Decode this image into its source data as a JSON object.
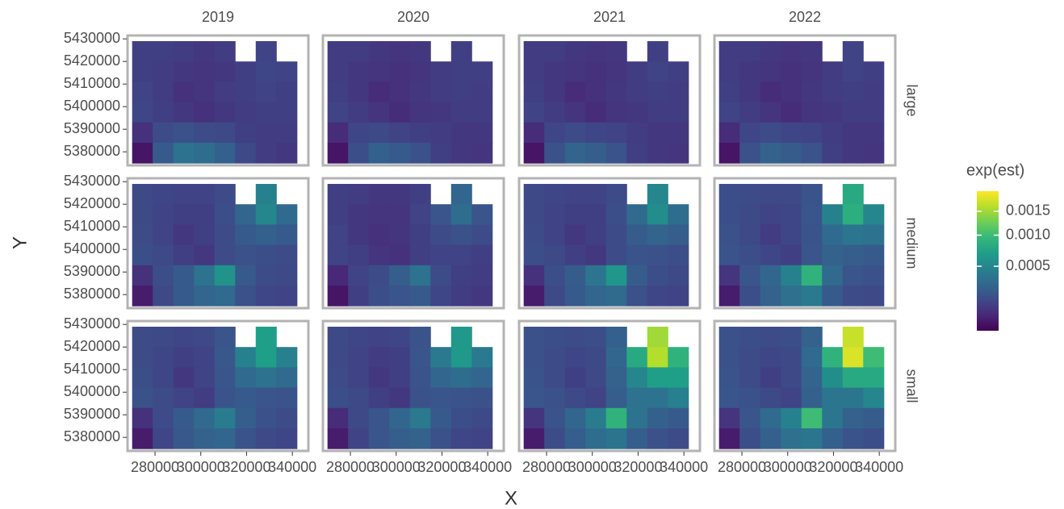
{
  "chart_data": {
    "type": "heatmap",
    "x_label": "X",
    "y_label": "Y",
    "legend_title": "exp(est)",
    "facet_cols": [
      "2019",
      "2020",
      "2021",
      "2022"
    ],
    "facet_rows": [
      "large",
      "medium",
      "small"
    ],
    "x": [
      274500,
      283500,
      292500,
      301500,
      310500,
      319500,
      328500,
      337500
    ],
    "y": [
      5424500,
      5415500,
      5406500,
      5397500,
      5388500,
      5379500
    ],
    "xlim": [
      268000,
      347000
    ],
    "ylim": [
      5374000,
      5431500
    ],
    "xticks": [
      280000,
      300000,
      320000,
      340000
    ],
    "yticks": [
      5380000,
      5390000,
      5400000,
      5410000,
      5420000,
      5430000
    ],
    "color_lim": [
      1e-05,
      0.002
    ],
    "color_trans": "sqrt",
    "color_ticks": [
      0.0005,
      {
        "value": 0.001,
        "label": "0.0010"
      },
      0.0015
    ],
    "colormap": [
      "#440154",
      "#482878",
      "#3e4a89",
      "#31688e",
      "#26828e",
      "#1f9e89",
      "#35b779",
      "#6ece58",
      "#b5de2b",
      "#fde725"
    ],
    "values": [
      [
        [
          [
            0.00012,
            0.00012,
            0.00011,
            0.0001,
            0.00011,
            null,
            0.00013,
            null
          ],
          [
            0.00012,
            0.00011,
            0.0001,
            9e-05,
            0.0001,
            0.00012,
            0.00014,
            0.00013
          ],
          [
            0.00013,
            0.00011,
            8e-05,
            9e-05,
            0.00011,
            0.00012,
            0.00013,
            0.00012
          ],
          [
            0.00014,
            0.00012,
            0.0001,
            8e-05,
            0.0001,
            0.00011,
            0.00012,
            0.00012
          ],
          [
            8e-05,
            0.00016,
            0.00018,
            0.00016,
            0.00015,
            0.00012,
            0.00011,
            0.00011
          ],
          [
            3e-05,
            0.00022,
            0.00035,
            0.00032,
            0.00025,
            0.00015,
            0.00011,
            0.0001
          ]
        ],
        [
          [
            0.00011,
            0.00011,
            0.0001,
            9e-05,
            0.0001,
            null,
            0.00012,
            null
          ],
          [
            0.00011,
            0.0001,
            9e-05,
            8e-05,
            9e-05,
            0.00011,
            0.00012,
            0.00012
          ],
          [
            0.00012,
            0.0001,
            7e-05,
            8e-05,
            0.0001,
            0.00011,
            0.00012,
            0.00011
          ],
          [
            0.00013,
            0.00011,
            9e-05,
            7e-05,
            9e-05,
            0.0001,
            0.00011,
            0.00011
          ],
          [
            7e-05,
            0.00014,
            0.00015,
            0.00013,
            0.00012,
            0.00011,
            0.0001,
            0.0001
          ],
          [
            3e-05,
            0.00017,
            0.00025,
            0.00022,
            0.00018,
            0.00012,
            0.0001,
            9e-05
          ]
        ],
        [
          [
            0.00011,
            0.00011,
            0.0001,
            9e-05,
            0.0001,
            null,
            0.00012,
            null
          ],
          [
            0.00011,
            0.0001,
            9e-05,
            8e-05,
            9e-05,
            0.00011,
            0.00013,
            0.00012
          ],
          [
            0.00012,
            0.0001,
            7e-05,
            8e-05,
            0.0001,
            0.00011,
            0.00012,
            0.00011
          ],
          [
            0.00013,
            0.00011,
            9e-05,
            7e-05,
            9e-05,
            0.0001,
            0.00011,
            0.00011
          ],
          [
            7e-05,
            0.00014,
            0.00016,
            0.00014,
            0.00013,
            0.00011,
            0.0001,
            0.0001
          ],
          [
            3e-05,
            0.00018,
            0.00027,
            0.00024,
            0.00019,
            0.00012,
            0.0001,
            9e-05
          ]
        ],
        [
          [
            0.00011,
            0.00011,
            0.0001,
            9e-05,
            0.0001,
            null,
            0.00013,
            null
          ],
          [
            0.00011,
            0.0001,
            9e-05,
            8e-05,
            9e-05,
            0.00011,
            0.00013,
            0.00012
          ],
          [
            0.00012,
            0.0001,
            7e-05,
            8e-05,
            0.0001,
            0.00011,
            0.00012,
            0.00011
          ],
          [
            0.00013,
            0.00011,
            9e-05,
            7e-05,
            9e-05,
            0.0001,
            0.00011,
            0.00011
          ],
          [
            7e-05,
            0.00014,
            0.00016,
            0.00014,
            0.00013,
            0.00011,
            0.0001,
            0.0001
          ],
          [
            3e-05,
            0.00018,
            0.00026,
            0.00023,
            0.00019,
            0.00012,
            0.0001,
            9e-05
          ]
        ]
      ],
      [
        [
          [
            0.00015,
            0.00014,
            0.00013,
            0.00013,
            0.00016,
            null,
            0.00045,
            null
          ],
          [
            0.00015,
            0.00013,
            0.00012,
            0.00012,
            0.00017,
            0.00028,
            0.0005,
            0.0003
          ],
          [
            0.00016,
            0.00013,
            0.0001,
            0.00012,
            0.00016,
            0.00022,
            0.00025,
            0.00022
          ],
          [
            0.00017,
            0.00015,
            0.00012,
            0.0001,
            0.00016,
            0.00018,
            0.00017,
            0.00016
          ],
          [
            8e-05,
            0.00017,
            0.00022,
            0.00035,
            0.0006,
            0.00022,
            0.00016,
            0.00015
          ],
          [
            4e-05,
            0.00015,
            0.00022,
            0.00028,
            0.0003,
            0.00018,
            0.00014,
            0.00013
          ]
        ],
        [
          [
            0.00012,
            0.00011,
            0.0001,
            0.0001,
            0.00012,
            null,
            0.00028,
            null
          ],
          [
            0.00012,
            0.0001,
            9e-05,
            9e-05,
            0.00013,
            0.0002,
            0.00032,
            0.0002
          ],
          [
            0.00013,
            0.0001,
            8e-05,
            9e-05,
            0.00012,
            0.00016,
            0.00018,
            0.00016
          ],
          [
            0.00013,
            0.00012,
            9e-05,
            8e-05,
            0.00012,
            0.00013,
            0.00013,
            0.00012
          ],
          [
            6e-05,
            0.00013,
            0.00016,
            0.00024,
            0.00035,
            0.00016,
            0.00012,
            0.00011
          ],
          [
            3e-05,
            0.00012,
            0.00017,
            0.0002,
            0.00022,
            0.00014,
            0.00011,
            0.0001
          ]
        ],
        [
          [
            0.00015,
            0.00014,
            0.00013,
            0.00013,
            0.00016,
            null,
            0.0005,
            null
          ],
          [
            0.00015,
            0.00013,
            0.00012,
            0.00012,
            0.00017,
            0.0003,
            0.00055,
            0.00032
          ],
          [
            0.00016,
            0.00013,
            0.0001,
            0.00012,
            0.00016,
            0.00023,
            0.00027,
            0.00024
          ],
          [
            0.00017,
            0.00015,
            0.00012,
            0.0001,
            0.00016,
            0.00019,
            0.00018,
            0.00017
          ],
          [
            8e-05,
            0.00017,
            0.00023,
            0.00037,
            0.00062,
            0.00023,
            0.00017,
            0.00015
          ],
          [
            4e-05,
            0.00015,
            0.00022,
            0.00028,
            0.00031,
            0.00018,
            0.00014,
            0.00013
          ]
        ],
        [
          [
            0.00017,
            0.00016,
            0.00015,
            0.00015,
            0.00019,
            null,
            0.0008,
            null
          ],
          [
            0.00017,
            0.00015,
            0.00013,
            0.00014,
            0.0002,
            0.00045,
            0.00085,
            0.0005
          ],
          [
            0.00018,
            0.00015,
            0.00011,
            0.00014,
            0.00019,
            0.0003,
            0.00038,
            0.00035
          ],
          [
            0.00019,
            0.00017,
            0.00014,
            0.00012,
            0.0002,
            0.00026,
            0.00024,
            0.00022
          ],
          [
            9e-05,
            0.0002,
            0.00028,
            0.00045,
            0.0009,
            0.0003,
            0.0002,
            0.00018
          ],
          [
            4e-05,
            0.00017,
            0.00026,
            0.00034,
            0.0004,
            0.00022,
            0.00016,
            0.00015
          ]
        ]
      ],
      [
        [
          [
            0.00016,
            0.00015,
            0.00014,
            0.00015,
            0.0002,
            null,
            0.0007,
            null
          ],
          [
            0.00016,
            0.00014,
            0.00012,
            0.00013,
            0.00021,
            0.00045,
            0.0007,
            0.00045
          ],
          [
            0.00017,
            0.00014,
            0.0001,
            0.00013,
            0.0002,
            0.0003,
            0.00035,
            0.0003
          ],
          [
            0.00018,
            0.00016,
            0.00013,
            0.00011,
            0.00019,
            0.00022,
            0.0002,
            0.00019
          ],
          [
            8e-05,
            0.00016,
            0.00022,
            0.0003,
            0.00042,
            0.00024,
            0.00018,
            0.00016
          ],
          [
            4e-05,
            0.00014,
            0.00021,
            0.00026,
            0.00028,
            0.00019,
            0.00015,
            0.00014
          ]
        ],
        [
          [
            0.00015,
            0.00014,
            0.00013,
            0.00014,
            0.00019,
            null,
            0.00065,
            null
          ],
          [
            0.00015,
            0.00013,
            0.00011,
            0.00012,
            0.0002,
            0.0004,
            0.00065,
            0.0004
          ],
          [
            0.00016,
            0.00013,
            0.0001,
            0.00012,
            0.00019,
            0.00028,
            0.00032,
            0.00028
          ],
          [
            0.00017,
            0.00015,
            0.00012,
            0.0001,
            0.00018,
            0.0002,
            0.00019,
            0.00018
          ],
          [
            7e-05,
            0.00015,
            0.0002,
            0.00028,
            0.0004,
            0.00022,
            0.00017,
            0.00015
          ],
          [
            4e-05,
            0.00013,
            0.0002,
            0.00024,
            0.00026,
            0.00018,
            0.00014,
            0.00013
          ]
        ],
        [
          [
            0.00018,
            0.00017,
            0.00016,
            0.00017,
            0.00025,
            null,
            0.0015,
            null
          ],
          [
            0.00018,
            0.00016,
            0.00014,
            0.00015,
            0.00028,
            0.0008,
            0.0016,
            0.0009
          ],
          [
            0.00019,
            0.00016,
            0.00012,
            0.00015,
            0.00026,
            0.0005,
            0.0007,
            0.0007
          ],
          [
            0.0002,
            0.00018,
            0.00015,
            0.00013,
            0.00024,
            0.00035,
            0.00035,
            0.00045
          ],
          [
            9e-05,
            0.00019,
            0.00028,
            0.00042,
            0.0009,
            0.00035,
            0.00025,
            0.00022
          ],
          [
            4e-05,
            0.00016,
            0.00024,
            0.00032,
            0.00036,
            0.00024,
            0.00018,
            0.00016
          ]
        ],
        [
          [
            0.00018,
            0.00017,
            0.00016,
            0.00017,
            0.00026,
            null,
            0.0017,
            null
          ],
          [
            0.00018,
            0.00016,
            0.00014,
            0.00015,
            0.0003,
            0.0009,
            0.0018,
            0.001
          ],
          [
            0.00019,
            0.00016,
            0.00012,
            0.00015,
            0.00027,
            0.00055,
            0.0008,
            0.0008
          ],
          [
            0.0002,
            0.00018,
            0.00015,
            0.00013,
            0.00025,
            0.00038,
            0.00038,
            0.0005
          ],
          [
            9e-05,
            0.0002,
            0.0003,
            0.00045,
            0.001,
            0.00038,
            0.00026,
            0.00023
          ],
          [
            4e-05,
            0.00017,
            0.00025,
            0.00034,
            0.00038,
            0.00025,
            0.00019,
            0.00017
          ]
        ]
      ]
    ]
  }
}
